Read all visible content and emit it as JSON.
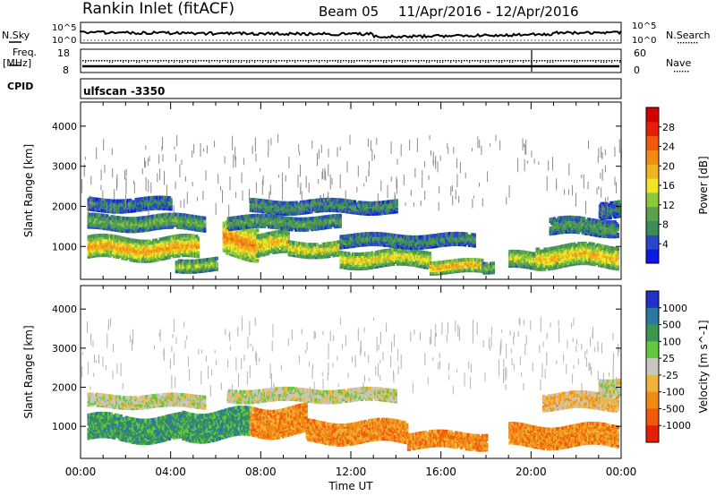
{
  "header": {
    "station": "Rankin Inlet (fitACF)",
    "beam": "Beam 05",
    "dates": "11/Apr/2016 - 12/Apr/2016"
  },
  "param_panels": {
    "nsky_label": "N.Sky",
    "nsky_ticks": [
      "10^5",
      "10^0"
    ],
    "nsearch_label": "N.Search",
    "nsearch_ticks": [
      "10^5",
      "10^0"
    ],
    "freq_label": "Freq.",
    "freq_unit": "[MHz]",
    "freq_ticks": [
      "18",
      "8"
    ],
    "nave_label": "Nave",
    "nave_ticks": [
      "60",
      "0"
    ],
    "cpid_label": "CPID",
    "cpid_value": "ulfscan -3350"
  },
  "chart_data": [
    {
      "type": "heatmap",
      "title": "",
      "quantity": "power",
      "xlabel": "Time UT",
      "ylabel": "Slant Range [km]",
      "x_ticks": [
        "00:00",
        "04:00",
        "08:00",
        "12:00",
        "16:00",
        "20:00",
        "00:00"
      ],
      "x_range_hours": [
        0,
        24
      ],
      "y_ticks": [
        "1000",
        "2000",
        "3000",
        "4000"
      ],
      "y_tick_values": [
        1000,
        2000,
        3000,
        4000
      ],
      "ylim": [
        180,
        4600
      ],
      "colorbar": {
        "label": "Power [dB]",
        "ticks": [
          "4",
          "8",
          "12",
          "16",
          "20",
          "24",
          "28"
        ],
        "tick_values": [
          4,
          8,
          12,
          16,
          20,
          24,
          28
        ],
        "range": [
          0,
          32
        ],
        "colors": [
          "#0a19e6",
          "#2848c8",
          "#3c8c5a",
          "#5aa050",
          "#8cc83c",
          "#f0e628",
          "#f0b41e",
          "#f08c14",
          "#f05a0a",
          "#e61e0a",
          "#d20000"
        ]
      },
      "bands": [
        {
          "t0": 0.3,
          "t1": 5.2,
          "r_center": 1000,
          "r_width": 500,
          "level": 22
        },
        {
          "t0": 0.3,
          "t1": 5.5,
          "r_center": 1650,
          "r_width": 350,
          "level": 11
        },
        {
          "t0": 0.3,
          "t1": 4.0,
          "r_center": 2100,
          "r_width": 300,
          "level": 7
        },
        {
          "t0": 4.2,
          "t1": 6.0,
          "r_center": 600,
          "r_width": 300,
          "level": 14
        },
        {
          "t0": 6.3,
          "t1": 7.8,
          "r_center": 1200,
          "r_width": 800,
          "level": 24
        },
        {
          "t0": 7.8,
          "t1": 9.2,
          "r_center": 1100,
          "r_width": 500,
          "level": 20
        },
        {
          "t0": 9.2,
          "t1": 11.5,
          "r_center": 1000,
          "r_width": 350,
          "level": 18
        },
        {
          "t0": 6.5,
          "t1": 11.5,
          "r_center": 1650,
          "r_width": 300,
          "level": 10
        },
        {
          "t0": 7.5,
          "t1": 14.0,
          "r_center": 2050,
          "r_width": 300,
          "level": 8
        },
        {
          "t0": 11.5,
          "t1": 15.5,
          "r_center": 750,
          "r_width": 400,
          "level": 18
        },
        {
          "t0": 15.5,
          "t1": 17.8,
          "r_center": 550,
          "r_width": 300,
          "level": 22
        },
        {
          "t0": 11.5,
          "t1": 17.5,
          "r_center": 1200,
          "r_width": 300,
          "level": 8
        },
        {
          "t0": 17.8,
          "t1": 18.3,
          "r_center": 550,
          "r_width": 250,
          "level": 12
        },
        {
          "t0": 19.0,
          "t1": 20.2,
          "r_center": 700,
          "r_width": 400,
          "level": 16
        },
        {
          "t0": 20.2,
          "t1": 23.8,
          "r_center": 800,
          "r_width": 500,
          "level": 20
        },
        {
          "t0": 20.8,
          "t1": 23.8,
          "r_center": 1550,
          "r_width": 400,
          "level": 9
        },
        {
          "t0": 23.0,
          "t1": 23.9,
          "r_center": 2000,
          "r_width": 400,
          "level": 6
        }
      ]
    },
    {
      "type": "heatmap",
      "title": "",
      "quantity": "velocity",
      "xlabel": "Time UT",
      "ylabel": "Slant Range [km]",
      "x_ticks": [
        "00:00",
        "04:00",
        "08:00",
        "12:00",
        "16:00",
        "20:00",
        "00:00"
      ],
      "x_range_hours": [
        0,
        24
      ],
      "y_ticks": [
        "1000",
        "2000",
        "3000",
        "4000"
      ],
      "y_tick_values": [
        1000,
        2000,
        3000,
        4000
      ],
      "ylim": [
        180,
        4600
      ],
      "colorbar": {
        "label": "Velocity [m s^-1]",
        "ticks": [
          "1000",
          "500",
          "100",
          "25",
          "-25",
          "-100",
          "-500",
          "-1000"
        ],
        "colors": [
          "#2030c8",
          "#2878a0",
          "#3c9650",
          "#64c83c",
          "#c8c8c0",
          "#f0b43c",
          "#f08c14",
          "#f05a0a",
          "#e61e0a"
        ]
      },
      "bands": [
        {
          "t0": 0.3,
          "t1": 4.5,
          "r_center": 1000,
          "r_width": 600,
          "level": 2
        },
        {
          "t0": 0.3,
          "t1": 5.5,
          "r_center": 1700,
          "r_width": 300,
          "level": 4
        },
        {
          "t0": 4.5,
          "t1": 7.5,
          "r_center": 1100,
          "r_width": 700,
          "level": 2
        },
        {
          "t0": 7.5,
          "t1": 10.0,
          "r_center": 1200,
          "r_width": 700,
          "level": 6
        },
        {
          "t0": 10.0,
          "t1": 14.5,
          "r_center": 900,
          "r_width": 500,
          "level": 6
        },
        {
          "t0": 6.5,
          "t1": 14.0,
          "r_center": 1850,
          "r_width": 300,
          "level": 4
        },
        {
          "t0": 14.5,
          "t1": 18.0,
          "r_center": 700,
          "r_width": 400,
          "level": 6
        },
        {
          "t0": 19.0,
          "t1": 23.8,
          "r_center": 800,
          "r_width": 500,
          "level": 6
        },
        {
          "t0": 20.5,
          "t1": 23.8,
          "r_center": 1700,
          "r_width": 400,
          "level": 5
        },
        {
          "t0": 23.0,
          "t1": 23.9,
          "r_center": 2100,
          "r_width": 400,
          "level": 4
        }
      ]
    }
  ]
}
